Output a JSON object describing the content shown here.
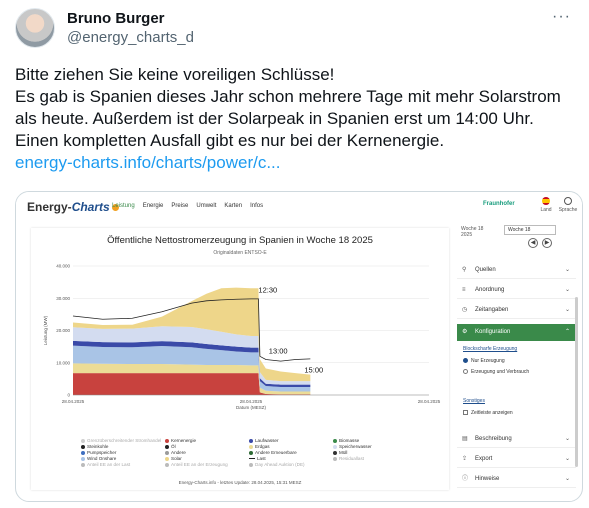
{
  "tweet": {
    "author_name": "Bruno Burger",
    "author_handle": "@energy_charts_d",
    "more_label": "···",
    "lines": [
      "Bitte ziehen Sie keine voreiligen Schlüsse!",
      "Es gab is Spanien dieses Jahr schon mehrere Tage mit mehr Solarstrom als heute. Außerdem ist der Solarpeak in Spanien erst um 14:00 Uhr. Einen kompletten Ausfall gibt es nur bei der Kernenergie."
    ],
    "link": "energy-charts.info/charts/power/c..."
  },
  "site": {
    "logo_main": "Energy-",
    "logo_italic": "Charts",
    "nav": [
      "Leistung",
      "Energie",
      "Preise",
      "Umwelt",
      "Karten",
      "Infos"
    ],
    "fraunhofer": "Fraunhofer",
    "land_label": "Land",
    "language_label": "Sprache"
  },
  "panel": {
    "week_label": "Woche 18 2025",
    "week_value": "Woche 18",
    "prev": "◀",
    "next": "▶",
    "rows": {
      "sources": "Quellen",
      "arrangement": "Anordnung",
      "timespan": "Zeitangaben",
      "configuration": "Konfiguration",
      "description": "Beschreibung",
      "export": "Export",
      "hints": "Hinweise"
    },
    "config": {
      "block_link": "Blockscharfe Erzeugung",
      "radio_only": "Nur Erzeugung",
      "radio_both": "Erzeugung und Verbrauch",
      "misc_link": "Sonstiges",
      "checkbox_time": "Zeitleiste anzeigen"
    }
  },
  "chart_data": {
    "type": "area",
    "title": "Öffentliche Nettostromerzeugung in Spanien in Woche 18 2025",
    "subtitle": "Originaldaten ENTSO-E",
    "ylabel": "Leistung (MW)",
    "xlabel": "Datum (MESZ)",
    "ylim": [
      0,
      40000
    ],
    "y_ticks": [
      "0",
      "10.000",
      "20.000",
      "30.000",
      "40.000"
    ],
    "x_ticks": [
      "28.04.2025",
      "28.04.2025",
      "28.04.2025"
    ],
    "x_hours": [
      0,
      12,
      24
    ],
    "x": [
      0,
      2,
      4,
      6,
      8,
      9,
      10,
      11,
      12,
      12.5,
      12.6,
      13,
      14,
      15,
      16
    ],
    "series": [
      {
        "name": "Kernenergie",
        "color": "#c8423e",
        "values": [
          6800,
          6800,
          6800,
          6800,
          6800,
          6800,
          6800,
          6800,
          6800,
          6800,
          800,
          300,
          200,
          200,
          200
        ]
      },
      {
        "name": "Erdgas",
        "color": "#ecdc96",
        "values": [
          3000,
          2900,
          2800,
          2800,
          2600,
          2500,
          2500,
          2500,
          2400,
          2400,
          1500,
          1000,
          900,
          900,
          900
        ]
      },
      {
        "name": "Wind Onshare",
        "color": "#a9c4e6",
        "values": [
          5500,
          5200,
          5200,
          5600,
          5400,
          5000,
          4600,
          4200,
          4000,
          4000,
          2000,
          1500,
          1400,
          1400,
          1400
        ]
      },
      {
        "name": "Laufwasser",
        "color": "#3a4aa8",
        "values": [
          1500,
          1500,
          1500,
          1500,
          1500,
          1500,
          1500,
          1500,
          1500,
          1500,
          900,
          700,
          700,
          700,
          700
        ]
      },
      {
        "name": "Speicherwasser",
        "color": "#d3dcf0",
        "values": [
          4200,
          4100,
          4300,
          4600,
          4800,
          4600,
          4200,
          3800,
          3600,
          3600,
          1900,
          1200,
          1100,
          1100,
          1100
        ]
      },
      {
        "name": "Solar",
        "color": "#eed68a",
        "values": [
          1500,
          1200,
          1200,
          3000,
          8000,
          11000,
          13500,
          14500,
          14800,
          14800,
          4000,
          3500,
          3000,
          2500,
          2000
        ]
      }
    ],
    "load": {
      "name": "Last",
      "values": [
        24500,
        23500,
        23800,
        25800,
        28500,
        29200,
        29500,
        29700,
        29800,
        29800,
        12000,
        11000,
        10500,
        11000,
        11200
      ]
    },
    "annotations": [
      "12:30",
      "13:00",
      "15:00"
    ],
    "legend": [
      {
        "label": "Grenzüberschreitender Stromhandel",
        "color": "#cfcfcf",
        "faded": true
      },
      {
        "label": "Steinkohle",
        "color": "#222222"
      },
      {
        "label": "Pumpspeicher",
        "color": "#3f6fc0"
      },
      {
        "label": "Wind Onshare",
        "color": "#a9c4e6"
      },
      {
        "label": "Anteil EE an der Last",
        "color": "#bbbbbb",
        "faded": true
      },
      {
        "label": "Kernenergie",
        "color": "#c8423e"
      },
      {
        "label": "Öl",
        "color": "#222222"
      },
      {
        "label": "Andere",
        "color": "#9b9b9b"
      },
      {
        "label": "Solar",
        "color": "#eed68a"
      },
      {
        "label": "Anteil EE an der Erzeugung",
        "color": "#bbbbbb",
        "faded": true
      },
      {
        "label": "Laufwasser",
        "color": "#3a4aa8"
      },
      {
        "label": "Erdgas",
        "color": "#ecdc96"
      },
      {
        "label": "Andere Erneuerbare",
        "color": "#2e6b34"
      },
      {
        "label": "Last",
        "color": "#222222",
        "line": true
      },
      {
        "label": "Day Ahead Auktion (DE)",
        "color": "#bbbbbb",
        "faded": true
      },
      {
        "label": "Biomasse",
        "color": "#3a8a4a"
      },
      {
        "label": "Speicherwasser",
        "color": "#d3dcf0"
      },
      {
        "label": "Müll",
        "color": "#333333"
      },
      {
        "label": "Residuallast",
        "color": "#bbbbbb",
        "faded": true
      }
    ],
    "footer": "Energy-Charts.info - letztes Update: 28.04.2025, 15:31 MESZ"
  }
}
